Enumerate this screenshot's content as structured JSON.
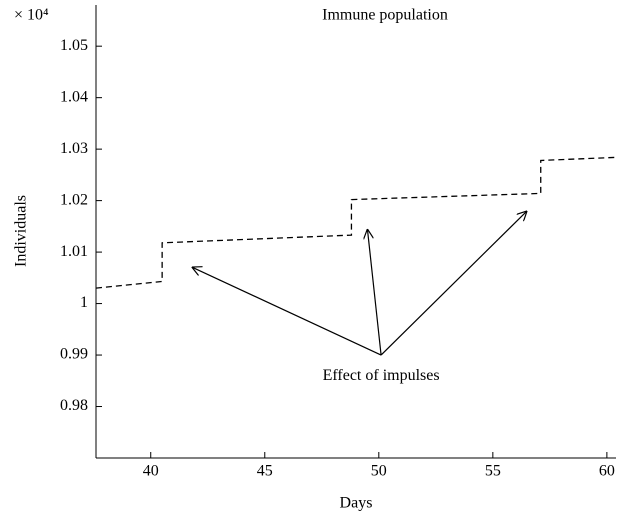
{
  "chart_data": {
    "type": "line",
    "title": "Immune population",
    "offset_text": "× 10⁴",
    "xlabel": "Days",
    "ylabel": "Individuals",
    "x": [
      37.6,
      40.5,
      40.5,
      48.8,
      48.8,
      57.1,
      57.1,
      60.4
    ],
    "series": [
      {
        "color": "#000000",
        "dashed": true,
        "values": [
          1.003,
          1.0043,
          1.0118,
          1.0133,
          1.0202,
          1.0214,
          1.0278,
          1.0284
        ]
      }
    ],
    "xlim": [
      37.6,
      60.4
    ],
    "ylim": [
      0.97,
      1.058
    ],
    "xticks": [
      40,
      45,
      50,
      55,
      60
    ],
    "yticks": [
      0.98,
      0.99,
      1,
      1.01,
      1.02,
      1.03,
      1.04,
      1.05
    ],
    "grid": false,
    "annotations": [
      {
        "text": "Effect of impulses",
        "xytext": [
          50.1,
          0.99
        ],
        "text_y": 0.9859,
        "xy": [
          [
            41.8,
            1.0071
          ],
          [
            49.5,
            1.0145
          ],
          [
            56.5,
            1.018
          ]
        ]
      }
    ]
  }
}
